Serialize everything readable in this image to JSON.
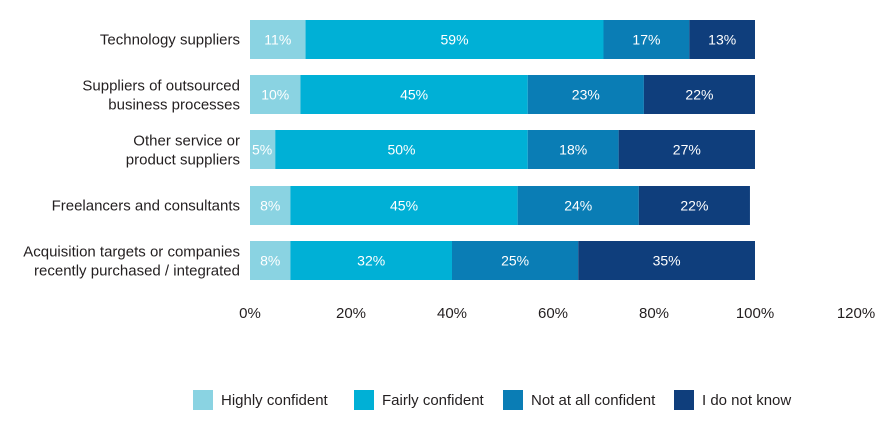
{
  "chart_data": {
    "type": "bar",
    "orientation": "horizontal",
    "stacked": true,
    "categories": [
      [
        "Technology suppliers"
      ],
      [
        "Suppliers of outsourced",
        "business processes"
      ],
      [
        "Other service or",
        "product suppliers"
      ],
      [
        "Freelancers and consultants"
      ],
      [
        "Acquisition targets or companies",
        "recently purchased / integrated"
      ]
    ],
    "series": [
      {
        "name": "Highly confident",
        "color": "#8ad3e2",
        "values": [
          11,
          10,
          5,
          8,
          8
        ]
      },
      {
        "name": "Fairly confident",
        "color": "#00b0d6",
        "values": [
          59,
          45,
          50,
          45,
          32
        ]
      },
      {
        "name": "Not at all confident",
        "color": "#0a7db5",
        "values": [
          17,
          23,
          18,
          24,
          25
        ]
      },
      {
        "name": "I do not know",
        "color": "#0f3e7c",
        "values": [
          13,
          22,
          27,
          22,
          35
        ]
      }
    ],
    "xlim": [
      0,
      120
    ],
    "xticks": [
      "0%",
      "20%",
      "40%",
      "60%",
      "80%",
      "100%",
      "120%"
    ],
    "value_suffix": "%",
    "legend_position": "bottom",
    "grid": false
  }
}
